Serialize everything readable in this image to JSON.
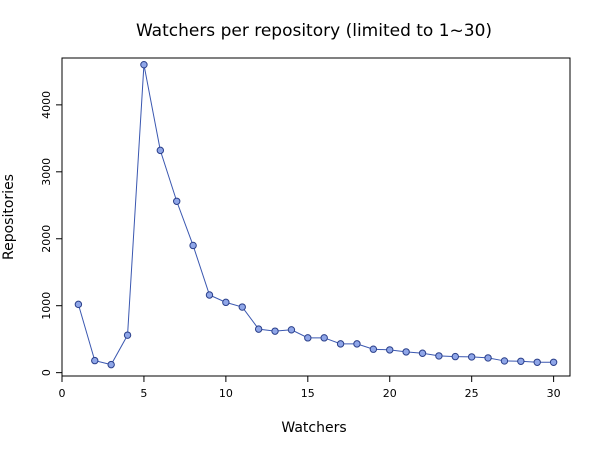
{
  "chart_data": {
    "type": "line",
    "title": "Watchers per repository (limited to 1~30)",
    "xlabel": "Watchers",
    "ylabel": "Repositories",
    "xlim": [
      0,
      31
    ],
    "ylim": [
      -50,
      4700
    ],
    "x_ticks": [
      0,
      5,
      10,
      15,
      20,
      25,
      30
    ],
    "y_ticks": [
      0,
      1000,
      2000,
      3000,
      4000
    ],
    "grid": false,
    "legend": "none",
    "x": [
      1,
      2,
      3,
      4,
      5,
      6,
      7,
      8,
      9,
      10,
      11,
      12,
      13,
      14,
      15,
      16,
      17,
      18,
      19,
      20,
      21,
      22,
      23,
      24,
      25,
      26,
      27,
      28,
      29,
      30
    ],
    "series": [
      {
        "values": [
          1020,
          180,
          120,
          560,
          4600,
          3320,
          2560,
          1900,
          1160,
          1050,
          980,
          650,
          620,
          640,
          520,
          520,
          430,
          430,
          350,
          340,
          310,
          290,
          250,
          240,
          235,
          220,
          175,
          170,
          155,
          155
        ],
        "line_color": "#3a57b0",
        "marker_fill": "#8fa6e8",
        "marker_stroke": "#2a3f8a"
      }
    ]
  }
}
